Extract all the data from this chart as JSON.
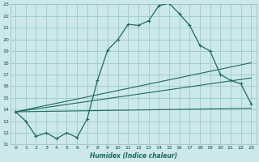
{
  "xlabel": "Humidex (Indice chaleur)",
  "bg_color": "#cce8e8",
  "grid_color": "#99cccc",
  "line_color": "#1a6b5a",
  "xlim": [
    -0.5,
    23.5
  ],
  "ylim": [
    11,
    23
  ],
  "yticks": [
    11,
    12,
    13,
    14,
    15,
    16,
    17,
    18,
    19,
    20,
    21,
    22,
    23
  ],
  "xticks": [
    0,
    1,
    2,
    3,
    4,
    5,
    6,
    7,
    8,
    9,
    10,
    11,
    12,
    13,
    14,
    15,
    16,
    17,
    18,
    19,
    20,
    21,
    22,
    23
  ],
  "line1_x": [
    0,
    1,
    2,
    3,
    4,
    5,
    6,
    7,
    8,
    9,
    10,
    11,
    12,
    13,
    14,
    15,
    16,
    17,
    18,
    19,
    20,
    21,
    22,
    23
  ],
  "line1_y": [
    13.8,
    13.0,
    11.7,
    12.0,
    11.5,
    12.0,
    11.6,
    13.2,
    16.5,
    19.1,
    20.0,
    21.3,
    21.2,
    21.6,
    22.9,
    23.1,
    22.2,
    21.2,
    19.5,
    19.0,
    17.0,
    16.5,
    16.2,
    14.5
  ],
  "line2_x": [
    0,
    23
  ],
  "line2_y": [
    13.8,
    14.1
  ],
  "line3_x": [
    0,
    23
  ],
  "line3_y": [
    13.8,
    16.7
  ],
  "line4_x": [
    0,
    23
  ],
  "line4_y": [
    13.8,
    18.0
  ]
}
